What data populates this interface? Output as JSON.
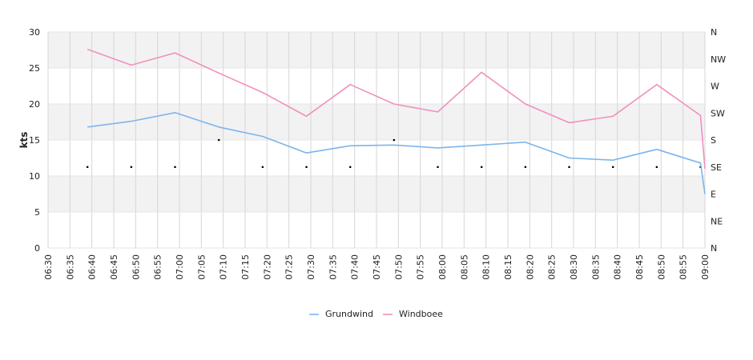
{
  "chart_data": {
    "type": "line",
    "ylabel": "kts",
    "ylim": [
      0,
      30
    ],
    "y_ticks": [
      "0",
      "5",
      "10",
      "15",
      "20",
      "25",
      "30"
    ],
    "y2_ticks": [
      "N",
      "NE",
      "E",
      "SE",
      "S",
      "SW",
      "W",
      "NW",
      "N"
    ],
    "x_ticks": [
      "06:30",
      "06:35",
      "06:40",
      "06:45",
      "06:50",
      "06:55",
      "07:00",
      "07:05",
      "07:10",
      "07:15",
      "07:20",
      "07:25",
      "07:30",
      "07:35",
      "07:40",
      "07:45",
      "07:50",
      "07:55",
      "08:00",
      "08:05",
      "08:10",
      "08:15",
      "08:20",
      "08:25",
      "08:30",
      "08:35",
      "08:40",
      "08:45",
      "08:50",
      "08:55",
      "09:00"
    ],
    "grid": true,
    "legend_position": "bottom",
    "series": [
      {
        "name": "Grundwind",
        "color": "#7cb5ec",
        "x": [
          "06:39",
          "06:49",
          "06:59",
          "07:09",
          "07:19",
          "07:29",
          "07:39",
          "07:49",
          "07:59",
          "08:09",
          "08:19",
          "08:29",
          "08:39",
          "08:49",
          "08:59",
          "09:00"
        ],
        "values": [
          16.8,
          17.6,
          18.8,
          16.8,
          15.5,
          13.2,
          14.2,
          14.3,
          13.9,
          14.3,
          14.7,
          12.5,
          12.2,
          13.7,
          11.8,
          7.5
        ]
      },
      {
        "name": "Windboee",
        "color": "#f28fbf",
        "x": [
          "06:39",
          "06:49",
          "06:59",
          "07:09",
          "07:19",
          "07:29",
          "07:39",
          "07:49",
          "07:59",
          "08:09",
          "08:19",
          "08:29",
          "08:39",
          "08:49",
          "08:59",
          "09:00"
        ],
        "values": [
          27.6,
          25.4,
          27.1,
          24.3,
          21.6,
          18.3,
          22.7,
          20.0,
          18.9,
          24.4,
          20.0,
          17.4,
          18.3,
          22.7,
          18.4,
          11.0
        ]
      }
    ],
    "direction_markers": {
      "x": [
        "06:39",
        "06:49",
        "06:59",
        "07:09",
        "07:19",
        "07:29",
        "07:39",
        "07:49",
        "07:59",
        "08:09",
        "08:19",
        "08:29",
        "08:39",
        "08:49",
        "08:59"
      ],
      "direction_degrees": [
        135,
        135,
        135,
        180,
        135,
        135,
        135,
        180,
        135,
        135,
        135,
        135,
        135,
        135,
        135
      ]
    }
  }
}
